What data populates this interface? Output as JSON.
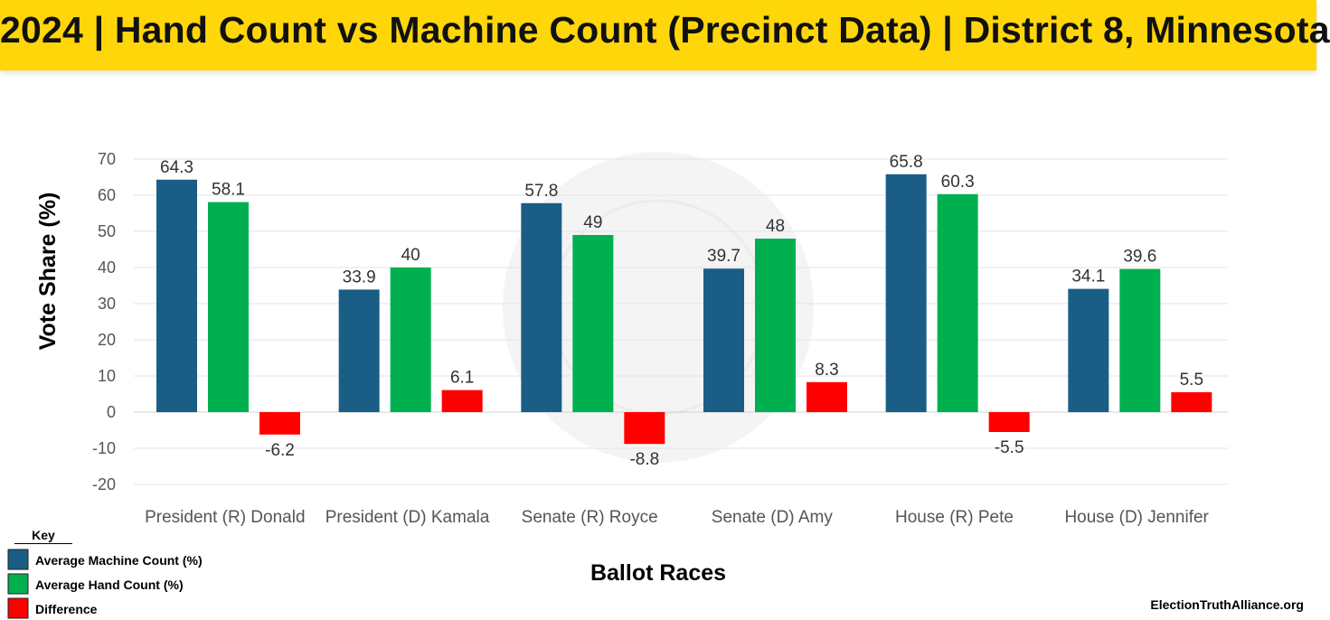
{
  "title": "2024 | Hand Count vs Machine Count (Precinct Data) | District 8, Minnesota",
  "source": "ElectionTruthAlliance.org",
  "key_title": "Key",
  "chart_data": {
    "type": "bar",
    "title": "",
    "xlabel": "Ballot Races",
    "ylabel": "Vote Share (%)",
    "ylim": [
      -20,
      70
    ],
    "yticks": [
      70,
      60,
      50,
      40,
      30,
      20,
      10,
      0,
      -10,
      -20
    ],
    "grid": true,
    "legend_placement": "bottom-left",
    "categories": [
      "President (R) Donald",
      "President (D) Kamala",
      "Senate (R) Royce",
      "Senate (D) Amy",
      "House (R) Pete",
      "House (D) Jennifer"
    ],
    "series": [
      {
        "name": "Average Machine Count (%)",
        "color": "#1a5d85",
        "values": [
          64.3,
          33.9,
          57.8,
          39.7,
          65.8,
          34.1
        ]
      },
      {
        "name": "Average Hand Count (%)",
        "color": "#00b050",
        "values": [
          58.1,
          40,
          49,
          48,
          60.3,
          39.6
        ]
      },
      {
        "name": "Difference",
        "color": "#ff0000",
        "values": [
          -6.2,
          6.1,
          -8.8,
          8.3,
          -5.5,
          5.5
        ]
      }
    ]
  }
}
